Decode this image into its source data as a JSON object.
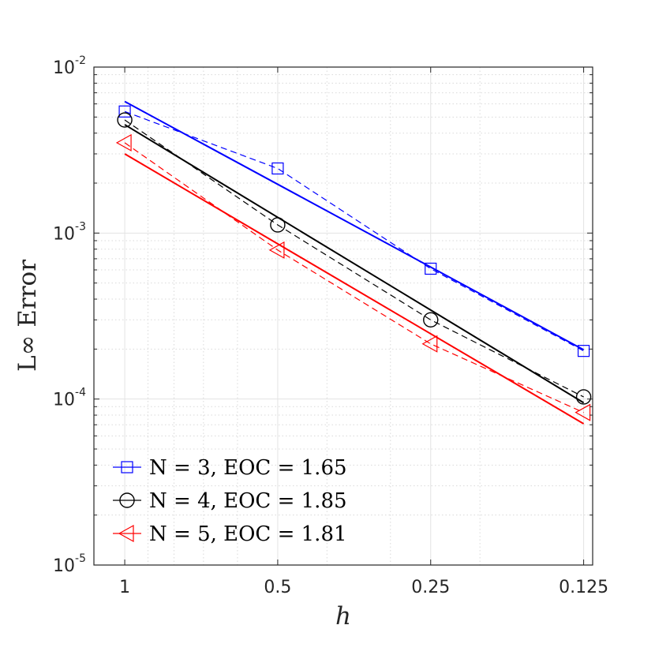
{
  "chart_data": {
    "type": "line",
    "title": "",
    "xlabel": "h",
    "ylabel": "L∞ Error",
    "x": [
      1,
      0.5,
      0.25,
      0.125
    ],
    "xscale": "log",
    "xdirection": "reversed",
    "xlim": [
      1.15,
      0.12
    ],
    "x_tick_labels": [
      "1",
      "0.5",
      "0.25",
      "0.125"
    ],
    "yscale": "log",
    "ylim": [
      1e-05,
      0.01
    ],
    "y_tick_labels": [
      {
        "base": "10",
        "exp": "-2"
      },
      {
        "base": "10",
        "exp": "-3"
      },
      {
        "base": "10",
        "exp": "-4"
      },
      {
        "base": "10",
        "exp": "-5"
      }
    ],
    "grid": true,
    "legend_position": "bottom-left",
    "series": [
      {
        "name": "N = 3, EOC = 1.65",
        "color": "#0000ff",
        "marker": "square",
        "values": [
          0.0054,
          0.00245,
          0.00061,
          0.000195
        ],
        "fit": [
          0.0062,
          0.000198
        ]
      },
      {
        "name": "N = 4, EOC = 1.85",
        "color": "#000000",
        "marker": "circle",
        "values": [
          0.0048,
          0.00112,
          0.0003,
          0.000103
        ],
        "fit": [
          0.0045,
          9.5e-05
        ]
      },
      {
        "name": "N = 5, EOC = 1.81",
        "color": "#ff0000",
        "marker": "triangle-left",
        "values": [
          0.0035,
          0.00079,
          0.000215,
          8.3e-05
        ],
        "fit": [
          0.003,
          7.1e-05
        ]
      }
    ]
  }
}
